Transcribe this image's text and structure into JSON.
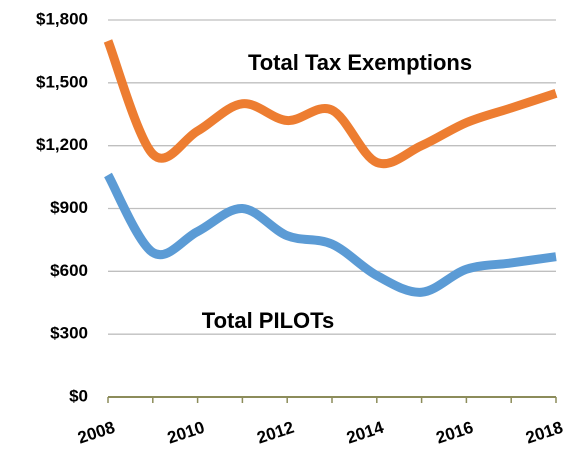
{
  "chart_data": {
    "type": "line",
    "x": [
      2008,
      2009,
      2010,
      2011,
      2012,
      2013,
      2014,
      2015,
      2016,
      2017,
      2018
    ],
    "xlim": [
      2008,
      2018
    ],
    "xticks": [
      2008,
      2010,
      2012,
      2014,
      2016,
      2018
    ],
    "ylim": [
      0,
      1800
    ],
    "yticks": [
      {
        "value": 0,
        "label": "$0"
      },
      {
        "value": 300,
        "label": "$300"
      },
      {
        "value": 600,
        "label": "$600"
      },
      {
        "value": 900,
        "label": "$900"
      },
      {
        "value": 1200,
        "label": "$1,200"
      },
      {
        "value": 1500,
        "label": "$1,500"
      },
      {
        "value": 1800,
        "label": "$1,800"
      }
    ],
    "grid": true,
    "series": [
      {
        "name": "Total Tax Exemptions",
        "color": "#ed7d31",
        "values": [
          1700,
          1160,
          1270,
          1400,
          1320,
          1370,
          1120,
          1200,
          1310,
          1380,
          1450
        ]
      },
      {
        "name": "Total PILOTs",
        "color": "#5b9bd5",
        "values": [
          1060,
          690,
          790,
          900,
          770,
          730,
          580,
          500,
          610,
          640,
          670
        ]
      }
    ]
  }
}
